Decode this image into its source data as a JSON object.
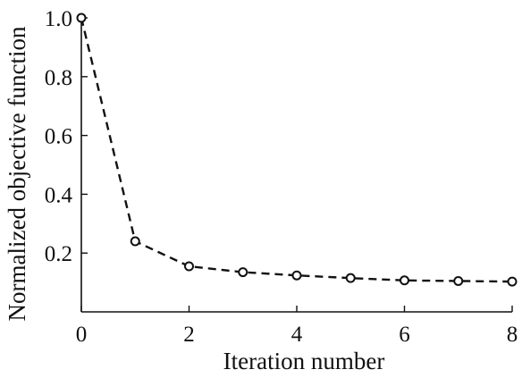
{
  "chart_data": {
    "type": "line",
    "title": "",
    "xlabel": "Iteration number",
    "ylabel": "Normalized objective function",
    "xlim": [
      0,
      8
    ],
    "ylim": [
      0.0,
      1.0
    ],
    "x_ticks": [
      0,
      2,
      4,
      6,
      8
    ],
    "x_tick_labels": [
      "0",
      "2",
      "4",
      "6",
      "8"
    ],
    "y_ticks": [
      0.2,
      0.4,
      0.6,
      0.8,
      1.0
    ],
    "y_tick_labels": [
      "0.2",
      "0.4",
      "0.6",
      "0.8",
      "1.0"
    ],
    "grid": false,
    "legend": "none",
    "series": [
      {
        "x": [
          0,
          1,
          2,
          3,
          4,
          5,
          6,
          7,
          8
        ],
        "values": [
          1.0,
          0.24,
          0.155,
          0.135,
          0.124,
          0.115,
          0.107,
          0.105,
          0.103
        ],
        "line_style": "dashed",
        "marker": "open-circle",
        "color": "#111111"
      }
    ]
  }
}
